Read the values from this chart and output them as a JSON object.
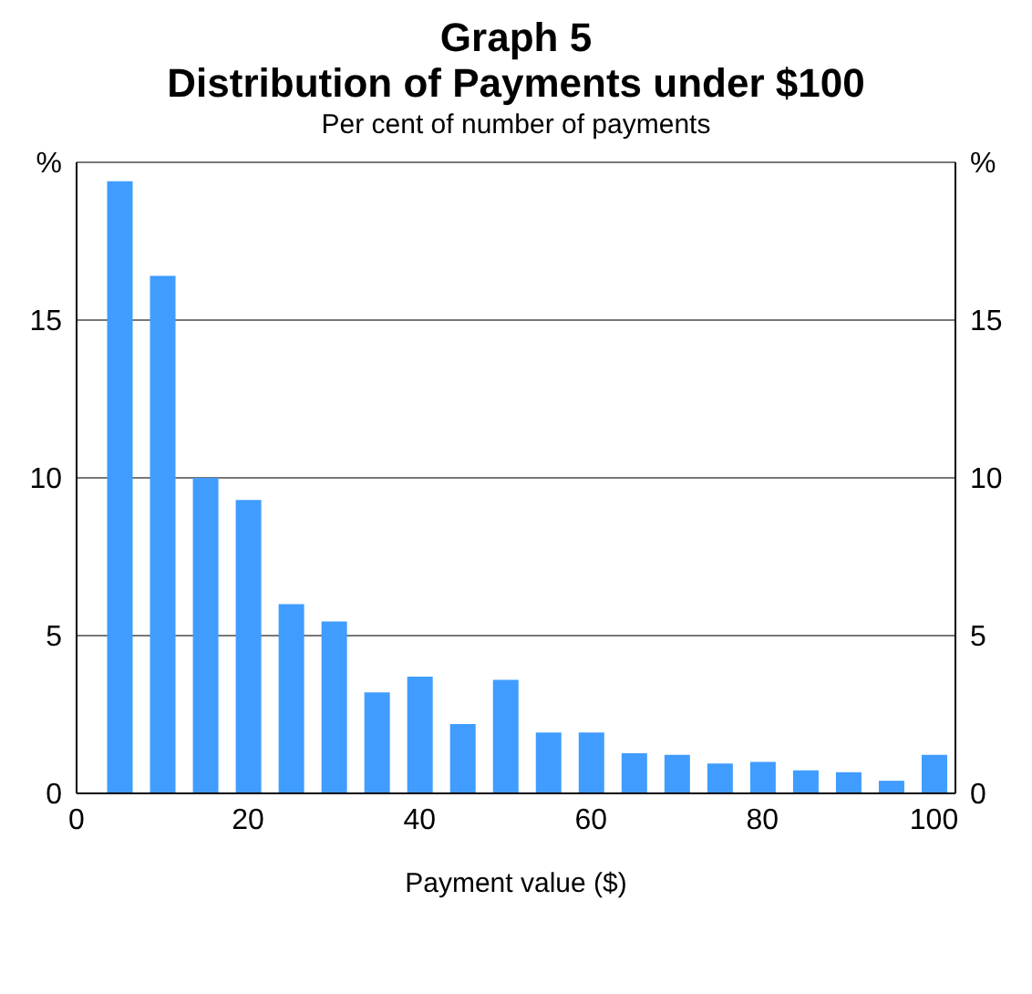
{
  "chart_data": {
    "type": "bar",
    "title": "Graph 5\nDistribution of Payments under $100",
    "subtitle": "Per cent of number of payments",
    "xlabel": "Payment value ($)",
    "x": [
      5,
      10,
      15,
      20,
      25,
      30,
      35,
      40,
      45,
      50,
      55,
      60,
      65,
      70,
      75,
      80,
      85,
      90,
      95,
      100
    ],
    "values": [
      19.4,
      16.4,
      10.0,
      9.3,
      6.0,
      5.45,
      3.2,
      3.7,
      2.2,
      3.6,
      1.93,
      1.93,
      1.27,
      1.22,
      0.95,
      1.0,
      0.73,
      0.67,
      0.4,
      1.22
    ],
    "color": "#409cff",
    "xlim": [
      0,
      102.5
    ],
    "xticks": [
      0,
      20,
      40,
      60,
      80,
      100
    ],
    "ylim": [
      0,
      20
    ],
    "yticks": [
      0,
      5,
      10,
      15,
      {
        "value": 20,
        "label": "%"
      }
    ],
    "y2lim": [
      0,
      20
    ],
    "y2ticks": [
      0,
      5,
      10,
      15,
      {
        "value": 20,
        "label": "%"
      }
    ],
    "grid": "y",
    "legend": false
  }
}
